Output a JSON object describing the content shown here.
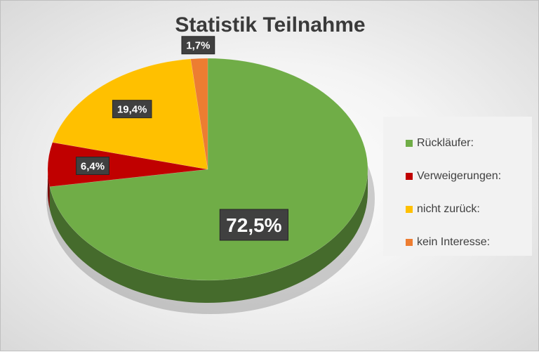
{
  "chart_data": {
    "type": "pie",
    "title": "Statistik Teilnahme",
    "legend_position": "right",
    "slices": [
      {
        "name": "Rückläufer:",
        "value": 72.5,
        "label": "72,5%",
        "color": "#70ad47"
      },
      {
        "name": "Verweigerungen:",
        "value": 6.4,
        "label": "6,4%",
        "color": "#c00000"
      },
      {
        "name": "nicht zurück:",
        "value": 19.4,
        "label": "19,4%",
        "color": "#ffc000"
      },
      {
        "name": "kein Interesse:",
        "value": 1.7,
        "label": "1,7%",
        "color": "#ed7d31"
      }
    ]
  }
}
